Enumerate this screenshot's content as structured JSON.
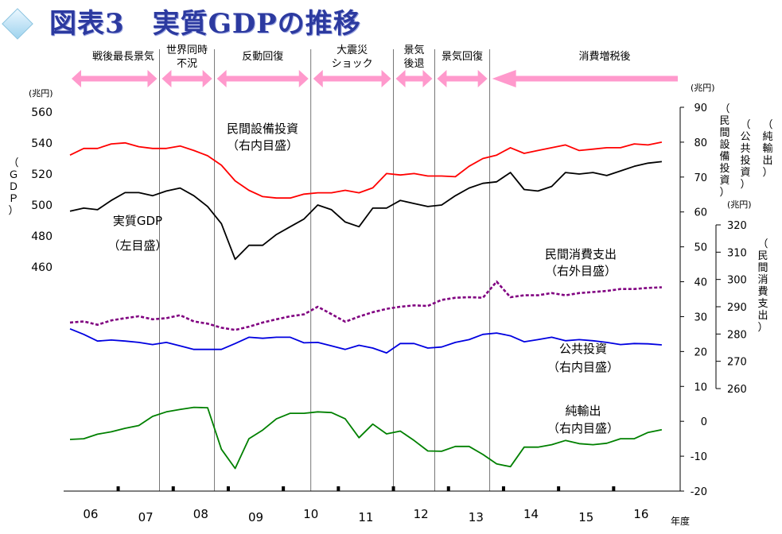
{
  "title": "図表3　実質GDPの推移",
  "units": {
    "left": "(兆円)",
    "right_inner": "(兆円)",
    "right_outer": "(兆円)",
    "x_suffix": "年度"
  },
  "axis_titles": {
    "left": "（ＧＤＰ）",
    "right_inner_1": "（民間設備投資）",
    "right_inner_2": "（公共投資）",
    "right_inner_3": "（純輸出）",
    "right_outer": "（民間消費支出）"
  },
  "periods": [
    {
      "label": "戦後最長景気",
      "start": 0,
      "end": 7,
      "arrow": "both"
    },
    {
      "label": "世界同時\n不況",
      "start": 7,
      "end": 11,
      "arrow": "both"
    },
    {
      "label": "反動回復",
      "start": 11,
      "end": 18,
      "arrow": "both"
    },
    {
      "label": "大震災\nショック",
      "start": 18,
      "end": 24,
      "arrow": "both"
    },
    {
      "label": "景気\n後退",
      "start": 24,
      "end": 27,
      "arrow": "both"
    },
    {
      "label": "景気回復",
      "start": 27,
      "end": 31,
      "arrow": "both"
    },
    {
      "label": "消費増税後",
      "start": 31,
      "end": 41,
      "arrow": "left"
    }
  ],
  "series_labels": {
    "gdp": "実質GDP\n（左目盛）",
    "equip": "民間設備投資\n（右内目盛）",
    "consumption": "民間消費支出\n（右外目盛）",
    "public": "公共投資\n（右内目盛）",
    "netexp": "純輸出\n（右内目盛）"
  },
  "chart_data": {
    "type": "line",
    "x_unit": "quarter index (0 = 2006 Q1)",
    "x_tick_labels": [
      "06",
      "07",
      "08",
      "09",
      "10",
      "11",
      "12",
      "13",
      "14",
      "15",
      "16"
    ],
    "axes": {
      "left": {
        "min": 460,
        "max": 560,
        "ticks": [
          460,
          480,
          500,
          520,
          540,
          560
        ]
      },
      "right_inner": {
        "min": -20,
        "max": 90,
        "ticks": [
          -20,
          -10,
          0,
          10,
          20,
          30,
          40,
          50,
          60,
          70,
          80,
          90
        ]
      },
      "right_outer": {
        "min": 260,
        "max": 320,
        "ticks": [
          260,
          270,
          280,
          290,
          300,
          310,
          320
        ]
      }
    },
    "series": [
      {
        "key": "equip",
        "color": "#ff0000",
        "axis": "right_inner",
        "dash": false,
        "values": [
          76.3,
          78.2,
          78.2,
          79.5,
          79.8,
          78.7,
          78.2,
          78.2,
          78.9,
          77.6,
          76.1,
          73.4,
          68.9,
          66.2,
          64.4,
          64.0,
          64.0,
          65.1,
          65.5,
          65.5,
          66.2,
          65.5,
          66.9,
          71.0,
          70.6,
          71.0,
          70.3,
          70.3,
          70.1,
          73.1,
          75.3,
          76.3,
          78.4,
          76.8,
          77.6,
          78.4,
          79.2,
          77.6,
          78.0,
          78.4,
          78.4,
          79.5,
          79.2,
          80.0
        ]
      },
      {
        "key": "gdp",
        "color": "#000000",
        "axis": "left",
        "dash": false,
        "values": [
          496,
          498,
          497,
          503,
          508,
          508,
          506,
          509,
          511,
          506,
          499,
          488,
          465,
          474,
          474,
          481,
          486,
          491,
          500,
          497,
          489,
          486,
          498,
          498,
          503,
          501,
          499,
          500,
          506,
          511,
          514,
          515,
          521,
          510,
          509,
          512,
          521,
          520,
          521,
          519,
          522,
          525,
          527,
          528
        ]
      },
      {
        "key": "consumption",
        "color": "#800080",
        "axis": "right_outer",
        "dash": true,
        "values": [
          284.2,
          284.6,
          283.4,
          285.0,
          285.8,
          286.5,
          285.4,
          285.8,
          286.9,
          284.6,
          283.8,
          282.3,
          281.5,
          282.7,
          284.2,
          285.4,
          286.5,
          287.2,
          290.0,
          287.3,
          284.5,
          286.4,
          288.0,
          289.2,
          290.0,
          290.5,
          290.3,
          292.5,
          293.3,
          293.5,
          293.3,
          299.2,
          293.5,
          294.2,
          294.2,
          295.0,
          294.2,
          295.0,
          295.4,
          295.8,
          296.5,
          296.5,
          296.9,
          297.1
        ]
      },
      {
        "key": "public",
        "color": "#0000e0",
        "axis": "right_inner",
        "dash": false,
        "values": [
          26.5,
          24.9,
          23.0,
          23.3,
          23.0,
          22.6,
          22.0,
          22.6,
          21.6,
          20.6,
          20.6,
          20.6,
          22.3,
          24.1,
          23.8,
          24.1,
          24.1,
          22.5,
          22.6,
          21.6,
          20.6,
          21.8,
          21.0,
          19.6,
          22.3,
          22.3,
          21.0,
          21.3,
          22.6,
          23.4,
          24.9,
          25.3,
          24.5,
          22.8,
          23.4,
          24.1,
          23.1,
          23.4,
          23.1,
          22.6,
          22.0,
          22.3,
          22.2,
          21.9
        ]
      },
      {
        "key": "netexp",
        "color": "#008000",
        "axis": "right_inner",
        "dash": false,
        "values": [
          -5.2,
          -5.0,
          -3.7,
          -3.0,
          -2.0,
          -1.2,
          1.4,
          2.7,
          3.4,
          4.0,
          3.9,
          -8.0,
          -13.5,
          -5.0,
          -2.5,
          0.7,
          2.3,
          2.3,
          2.7,
          2.5,
          0.7,
          -4.7,
          -0.8,
          -3.6,
          -2.8,
          -5.5,
          -8.5,
          -8.6,
          -7.2,
          -7.2,
          -9.5,
          -12.2,
          -13.0,
          -7.4,
          -7.4,
          -6.7,
          -5.5,
          -6.4,
          -6.7,
          -6.3,
          -5.0,
          -5.0,
          -3.2,
          -2.4
        ]
      }
    ]
  }
}
